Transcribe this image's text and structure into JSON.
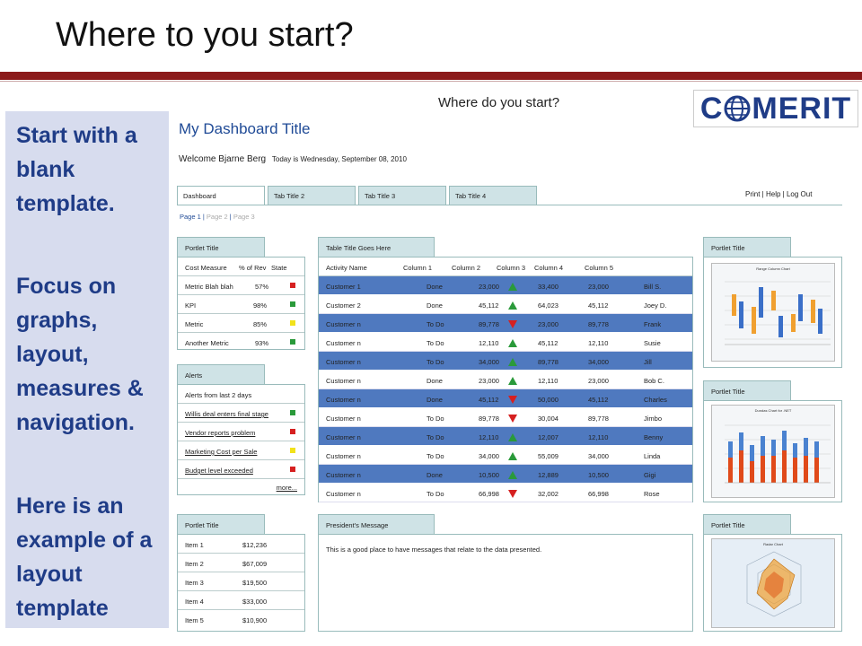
{
  "slide": {
    "title": "Where to you start?",
    "side_text": [
      "Start with a blank template.",
      "Focus on graphs, layout, measures & navigation.",
      "Here is an example of a layout template"
    ]
  },
  "dashboard": {
    "header_question": "Where do you start?",
    "logo_text_left": "C",
    "logo_text_right": "MERIT",
    "title": "My Dashboard Title",
    "welcome": "Welcome Bjarne Berg",
    "today": "Today is Wednesday, September 08, 2010",
    "tabs": [
      "Dashboard",
      "Tab Title 2",
      "Tab Title 3",
      "Tab Title 4"
    ],
    "top_links": "Print  |  Help  |  Log Out",
    "pages": [
      "Page 1",
      "Page 2",
      "Page 3"
    ]
  },
  "portlet1": {
    "title": "Portlet Title",
    "header": [
      "Cost Measure",
      "% of Rev",
      "State"
    ],
    "rows": [
      {
        "label": "Metric Blah blah",
        "value": "57%",
        "state": "#d62020"
      },
      {
        "label": "KPI",
        "value": "98%",
        "state": "#2a9a3a"
      },
      {
        "label": "Metric",
        "value": "85%",
        "state": "#f2e21a"
      },
      {
        "label": "Another Metric",
        "value": "93%",
        "state": "#2a9a3a"
      }
    ]
  },
  "alerts": {
    "title": "Alerts",
    "subtitle": "Alerts from last 2 days",
    "rows": [
      {
        "label": "Willis deal enters final stage",
        "state": "#2a9a3a"
      },
      {
        "label": "Vendor reports problem",
        "state": "#d62020"
      },
      {
        "label": "Marketing Cost per Sale",
        "state": "#f2e21a"
      },
      {
        "label": "Budget level exceeded",
        "state": "#d62020"
      }
    ],
    "more": "more..."
  },
  "portlet3": {
    "title": "Portlet Title",
    "rows": [
      {
        "label": "Item 1",
        "value": "$12,236"
      },
      {
        "label": "Item 2",
        "value": "$67,009"
      },
      {
        "label": "Item 3",
        "value": "$19,500"
      },
      {
        "label": "Item 4",
        "value": "$33,000"
      },
      {
        "label": "Item 5",
        "value": "$10,900"
      }
    ]
  },
  "table": {
    "title": "Table Title Goes Here",
    "columns": [
      "Activity Name",
      "Column 1",
      "Column 2",
      "Column 3",
      "Column 4",
      "Column 5"
    ],
    "rows": [
      {
        "name": "Customer 1",
        "status": "Done",
        "c2": "23,000",
        "trend": "up",
        "c4": "33,400",
        "c5": "23,000",
        "person": "Bill S."
      },
      {
        "name": "Customer 2",
        "status": "Done",
        "c2": "45,112",
        "trend": "up",
        "c4": "64,023",
        "c5": "45,112",
        "person": "Joey D."
      },
      {
        "name": "Customer n",
        "status": "To Do",
        "c2": "89,778",
        "trend": "down",
        "c4": "23,000",
        "c5": "89,778",
        "person": "Frank"
      },
      {
        "name": "Customer n",
        "status": "To Do",
        "c2": "12,110",
        "trend": "up",
        "c4": "45,112",
        "c5": "12,110",
        "person": "Susie"
      },
      {
        "name": "Customer n",
        "status": "To Do",
        "c2": "34,000",
        "trend": "up",
        "c4": "89,778",
        "c5": "34,000",
        "person": "Jill"
      },
      {
        "name": "Customer n",
        "status": "Done",
        "c2": "23,000",
        "trend": "up",
        "c4": "12,110",
        "c5": "23,000",
        "person": "Bob C."
      },
      {
        "name": "Customer n",
        "status": "Done",
        "c2": "45,112",
        "trend": "down",
        "c4": "50,000",
        "c5": "45,112",
        "person": "Charles"
      },
      {
        "name": "Customer n",
        "status": "To Do",
        "c2": "89,778",
        "trend": "down",
        "c4": "30,004",
        "c5": "89,778",
        "person": "Jimbo"
      },
      {
        "name": "Customer n",
        "status": "To Do",
        "c2": "12,110",
        "trend": "up",
        "c4": "12,007",
        "c5": "12,110",
        "person": "Benny"
      },
      {
        "name": "Customer n",
        "status": "To Do",
        "c2": "34,000",
        "trend": "up",
        "c4": "55,009",
        "c5": "34,000",
        "person": "Linda"
      },
      {
        "name": "Customer n",
        "status": "Done",
        "c2": "10,500",
        "trend": "up",
        "c4": "12,889",
        "c5": "10,500",
        "person": "Gigi"
      },
      {
        "name": "Customer n",
        "status": "To Do",
        "c2": "66,998",
        "trend": "down",
        "c4": "32,002",
        "c5": "66,998",
        "person": "Rose"
      }
    ]
  },
  "president": {
    "title": "President's Message",
    "message": "This is a good place to have messages that relate to the data presented."
  },
  "right_portlets": [
    {
      "title": "Portlet Title",
      "chart_caption": "Range Column Chart"
    },
    {
      "title": "Portlet Title",
      "chart_caption": "Dundas Chart for .NET"
    },
    {
      "title": "Portlet Title",
      "chart_caption": "Radar Chart"
    }
  ],
  "colors": {
    "accent_bar": "#8b1a1a",
    "row_blue": "#4f79bf",
    "tab_fill": "#cfe3e6",
    "side_panel": "#d7dcee",
    "side_text": "#1f3c87"
  }
}
